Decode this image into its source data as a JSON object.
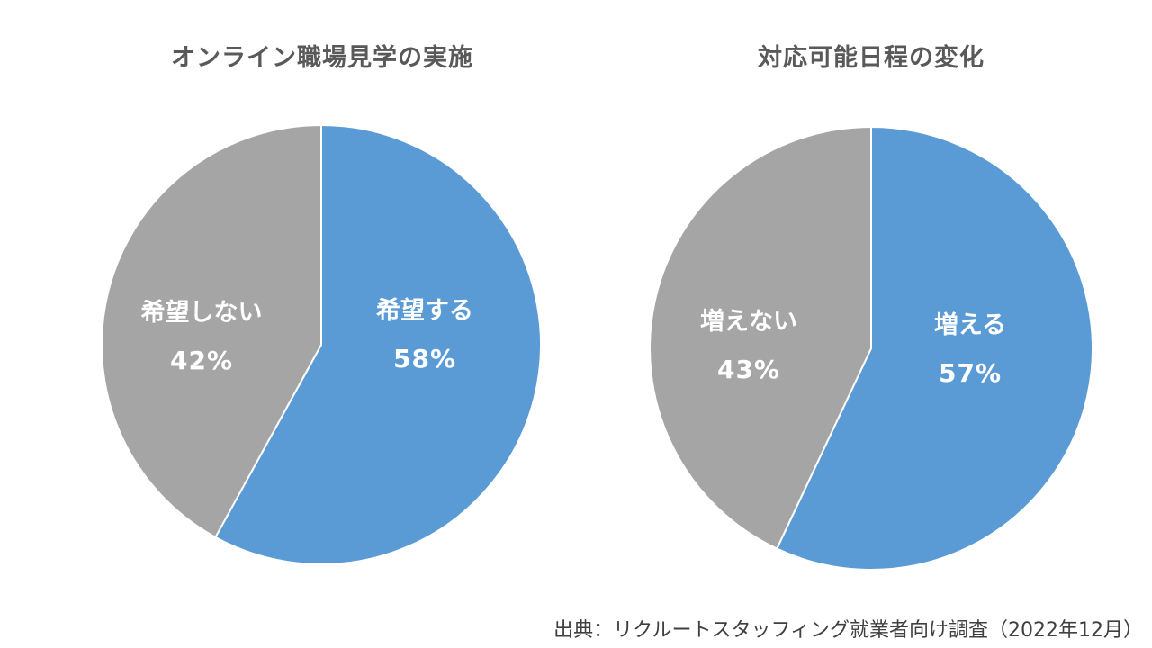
{
  "chart_data": [
    {
      "type": "pie",
      "title": "オンライン職場見学の実施",
      "slices": [
        {
          "label": "希望する",
          "value": 58,
          "display": "58%",
          "color": "#5B9BD5"
        },
        {
          "label": "希望しない",
          "value": 42,
          "display": "42%",
          "color": "#A5A5A5"
        }
      ]
    },
    {
      "type": "pie",
      "title": "対応可能日程の変化",
      "slices": [
        {
          "label": "増える",
          "value": 57,
          "display": "57%",
          "color": "#5B9BD5"
        },
        {
          "label": "増えない",
          "value": 43,
          "display": "43%",
          "color": "#A5A5A5"
        }
      ]
    }
  ],
  "source": "出典：リクルートスタッフィング就業者向け調査（2022年12月）"
}
